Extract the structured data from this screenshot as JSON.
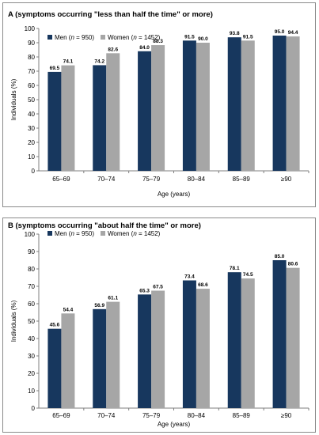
{
  "colors": {
    "men": "#17375e",
    "women": "#a6a6a6"
  },
  "chart_data": [
    {
      "type": "bar",
      "title": "A (symptoms occurring \"less than half the time\" or more)",
      "xlabel": "Age (years)",
      "ylabel": "Individuals (%)",
      "ylim": [
        0,
        100
      ],
      "yticks": [
        0,
        10,
        20,
        30,
        40,
        50,
        60,
        70,
        80,
        90,
        100
      ],
      "categories": [
        "65–69",
        "70–74",
        "75–79",
        "80–84",
        "85–89",
        "≥90"
      ],
      "legend_position": "top-left",
      "series": [
        {
          "name": "Men (n = 950)",
          "label_prefix": "Men (",
          "label_n": "n",
          "label_suffix": " = 950)",
          "values": [
            69.5,
            74.2,
            84.0,
            91.5,
            93.8,
            95.0
          ],
          "labels": [
            "69.5",
            "74.2",
            "84.0",
            "91.5",
            "93.8",
            "95.0"
          ]
        },
        {
          "name": "Women (n = 1452)",
          "label_prefix": "Women (",
          "label_n": "n",
          "label_suffix": " = 1452)",
          "values": [
            74.1,
            82.6,
            88.3,
            90.0,
            91.5,
            94.4
          ],
          "labels": [
            "74.1",
            "82.6",
            "88.3",
            "90.0",
            "91.5",
            "94.4"
          ]
        }
      ]
    },
    {
      "type": "bar",
      "title": "B (symptoms occurring \"about half the time\" or more)",
      "xlabel": "Age (years)",
      "ylabel": "Individuals (%)",
      "ylim": [
        0,
        100
      ],
      "yticks": [
        0,
        10,
        20,
        30,
        40,
        50,
        60,
        70,
        80,
        90,
        100
      ],
      "categories": [
        "65–69",
        "70–74",
        "75–79",
        "80–84",
        "85–89",
        "≥90"
      ],
      "legend_position": "top-left",
      "series": [
        {
          "name": "Men (n = 950)",
          "label_prefix": "Men (",
          "label_n": "n",
          "label_suffix": " = 950)",
          "values": [
            45.6,
            56.9,
            65.3,
            73.4,
            78.1,
            85.0
          ],
          "labels": [
            "45.6",
            "56.9",
            "65.3",
            "73.4",
            "78.1",
            "85.0"
          ]
        },
        {
          "name": "Women (n = 1452)",
          "label_prefix": "Women (",
          "label_n": "n",
          "label_suffix": " = 1452)",
          "values": [
            54.4,
            61.1,
            67.5,
            68.6,
            74.5,
            80.6
          ],
          "labels": [
            "54.4",
            "61.1",
            "67.5",
            "68.6",
            "74.5",
            "80.6"
          ]
        }
      ]
    }
  ]
}
